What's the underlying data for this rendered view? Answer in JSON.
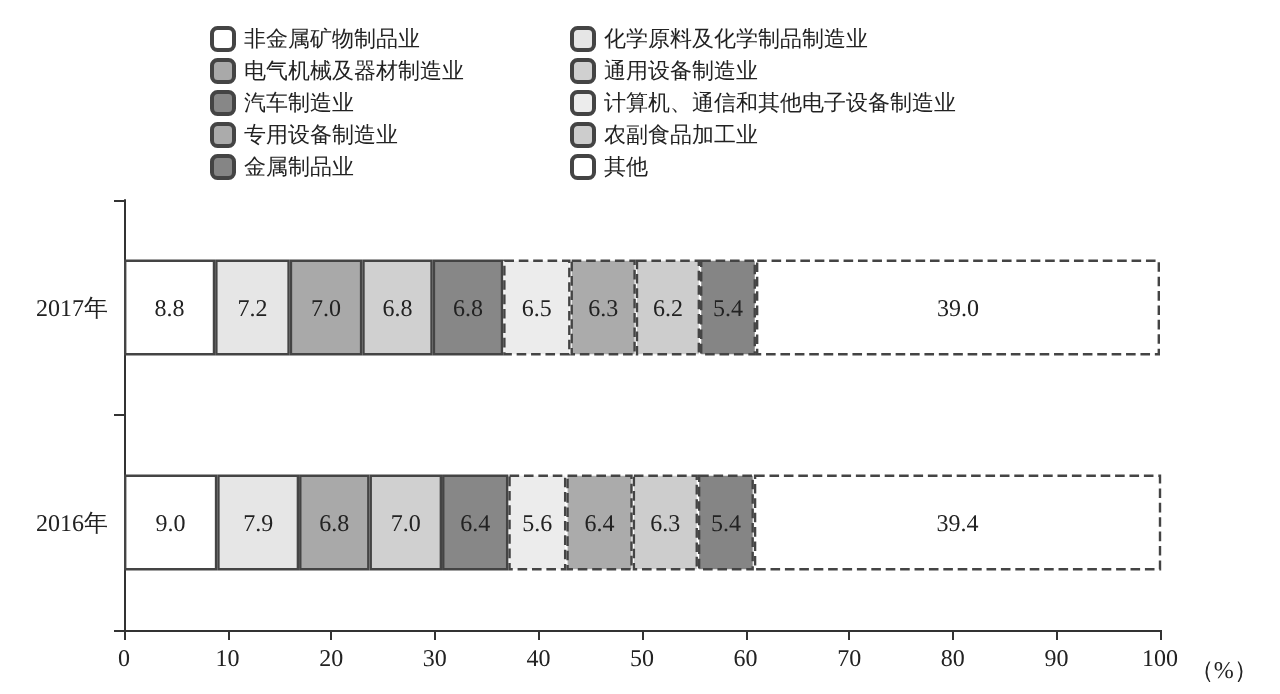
{
  "chart_data": {
    "type": "bar",
    "orientation": "horizontal",
    "stacked": true,
    "legend": "top",
    "grid": false,
    "categories": [
      "2017年",
      "2016年"
    ],
    "xlabel": "（%）",
    "xlim": [
      0,
      100
    ],
    "xticks": [
      0,
      10,
      20,
      30,
      40,
      50,
      60,
      70,
      80,
      90,
      100
    ],
    "series": [
      {
        "name": "非金属矿物制品业",
        "color": "#ffffff",
        "values": [
          8.8,
          9.0
        ],
        "value_labels": [
          "8.8",
          "9.0"
        ]
      },
      {
        "name": "化学原料及化学制品制造业",
        "color": "#e6e6e6",
        "values": [
          7.2,
          7.9
        ],
        "value_labels": [
          "7.2",
          "7.9"
        ]
      },
      {
        "name": "电气机械及器材制造业",
        "color": "#a9a9a9",
        "values": [
          7.0,
          6.8
        ],
        "value_labels": [
          "7.0",
          "6.8"
        ]
      },
      {
        "name": "通用设备制造业",
        "color": "#d0d0d0",
        "values": [
          6.8,
          7.0
        ],
        "value_labels": [
          "6.8",
          "7.0"
        ]
      },
      {
        "name": "汽车制造业",
        "color": "#878787",
        "values": [
          6.8,
          6.4
        ],
        "value_labels": [
          "6.8",
          "6.4"
        ]
      },
      {
        "name": "计算机、通信和其他电子设备制造业",
        "color": "#ececec",
        "values": [
          6.5,
          5.6
        ],
        "value_labels": [
          "6.5",
          "5.6"
        ],
        "line_style": "dashed"
      },
      {
        "name": "专用设备制造业",
        "color": "#ababab",
        "values": [
          6.3,
          6.4
        ],
        "value_labels": [
          "6.3",
          "6.4"
        ],
        "line_style": "dashed"
      },
      {
        "name": "农副食品加工业",
        "color": "#cdcdcd",
        "values": [
          6.2,
          6.3
        ],
        "value_labels": [
          "6.2",
          "6.3"
        ],
        "line_style": "dashed"
      },
      {
        "name": "金属制品业",
        "color": "#858585",
        "values": [
          5.4,
          5.4
        ],
        "value_labels": [
          "5.4",
          "5.4"
        ],
        "line_style": "dashed"
      },
      {
        "name": "其他",
        "color": "#ffffff",
        "values": [
          39.0,
          39.4
        ],
        "value_labels": [
          "39.0",
          "39.4"
        ],
        "line_style": "dashed"
      }
    ]
  }
}
